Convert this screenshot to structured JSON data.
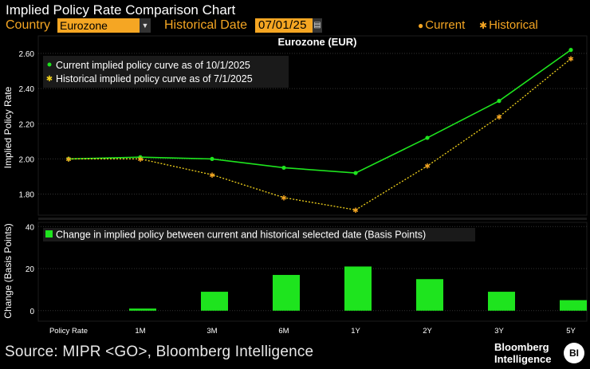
{
  "header": {
    "title": "Implied Policy Rate Comparison Chart",
    "country_label": "Country",
    "country_value": "Eurozone",
    "historical_date_label": "Historical Date",
    "historical_date_value": "07/01/25",
    "legend_current": "Current",
    "legend_historical": "Historical"
  },
  "colors": {
    "background": "#000000",
    "accent_orange": "#f5a623",
    "current_green": "#1ee41e",
    "historical_yellow": "#f2d21b",
    "bar_green": "#1ee41e",
    "grid": "#3a3a3a"
  },
  "chart_data": [
    {
      "type": "line",
      "title": "Eurozone (EUR)",
      "xlabel": "",
      "ylabel": "Implied Policy Rate",
      "categories": [
        "Policy Rate",
        "1M",
        "3M",
        "6M",
        "1Y",
        "2Y",
        "3Y",
        "5Y"
      ],
      "yticks": [
        "1.80",
        "2.00",
        "2.20",
        "2.40",
        "2.60"
      ],
      "ylim": [
        1.68,
        2.7
      ],
      "grid": true,
      "legend_position": "top-left",
      "series": [
        {
          "name": "Current implied policy curve as of 10/1/2025",
          "values": [
            2.0,
            2.01,
            2.0,
            1.95,
            1.92,
            2.12,
            2.33,
            2.62
          ]
        },
        {
          "name": "Historical implied policy curve as of 7/1/2025",
          "values": [
            2.0,
            2.0,
            1.91,
            1.78,
            1.71,
            1.96,
            2.24,
            2.57
          ]
        }
      ]
    },
    {
      "type": "bar",
      "title": "",
      "xlabel": "",
      "ylabel": "Change (Basis Points)",
      "categories": [
        "Policy Rate",
        "1M",
        "3M",
        "6M",
        "1Y",
        "2Y",
        "3Y",
        "5Y"
      ],
      "yticks": [
        "0",
        "20",
        "40"
      ],
      "ylim": [
        -5,
        42
      ],
      "grid": true,
      "legend_position": "top-left",
      "series": [
        {
          "name": "Change in implied policy between current and historical selected date (Basis Points)",
          "values": [
            0,
            1,
            9,
            17,
            21,
            15,
            9,
            5
          ]
        }
      ]
    }
  ],
  "footer": {
    "source": "Source: MIPR <GO>, Bloomberg Intelligence",
    "brand_line1": "Bloomberg",
    "brand_line2": "Intelligence",
    "logo_text": "BI"
  }
}
